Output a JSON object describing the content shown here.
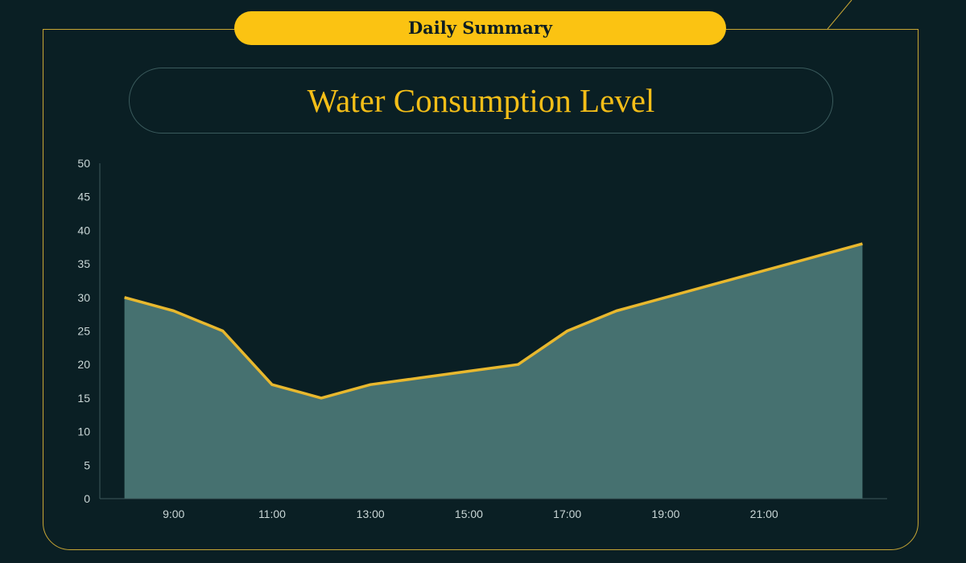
{
  "header": {
    "badge_label": "Daily Summary"
  },
  "chart_data": {
    "type": "area",
    "title": "Water Consumption Level",
    "xlabel": "",
    "ylabel": "",
    "x": [
      8,
      9,
      10,
      11,
      12,
      13,
      14,
      15,
      16,
      17,
      18,
      19,
      20,
      21,
      22,
      23
    ],
    "values": [
      30,
      28,
      25,
      17,
      15,
      17,
      18,
      19,
      20,
      25,
      28,
      30,
      32,
      34,
      36,
      38
    ],
    "xticks": [
      9,
      11,
      13,
      15,
      17,
      19,
      21
    ],
    "xtick_labels": [
      "9:00",
      "11:00",
      "13:00",
      "15:00",
      "17:00",
      "19:00",
      "21:00"
    ],
    "yticks": [
      0,
      5,
      10,
      15,
      20,
      25,
      30,
      35,
      40,
      45,
      50
    ],
    "ylim": [
      0,
      50
    ],
    "xlim": [
      7.5,
      23.5
    ],
    "grid": false,
    "colors": {
      "line": "#e8b82e",
      "fill": "#467170",
      "axis": "#3d5a5c",
      "frame": "#c8a634",
      "accent": "#fbc312"
    }
  }
}
